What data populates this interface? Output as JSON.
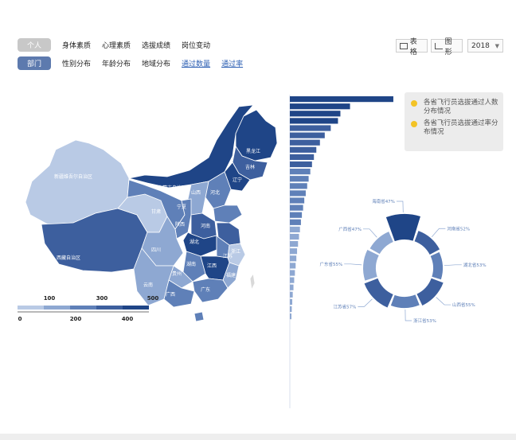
{
  "primary_tabs": {
    "selected": "个人",
    "items": [
      "身体素质",
      "心理素质",
      "选拔成绩",
      "岗位变动"
    ]
  },
  "secondary_tabs": {
    "selected": "部门",
    "items": [
      "性别分布",
      "年龄分布",
      "地域分布"
    ],
    "links": [
      "通过数量",
      "通过率"
    ]
  },
  "view_toggle": {
    "table_label": "表格",
    "chart_label": "图形"
  },
  "year_select": {
    "value": "2018"
  },
  "legend_box": {
    "items": [
      "各省飞行员选拔通过人数分布情况",
      "各省飞行员选拔通过率分布情况"
    ]
  },
  "colors": {
    "dark": "#1f4587",
    "mid_dark": "#3d5f9e",
    "mid": "#5f80b8",
    "light": "#8ea8d2",
    "pale": "#b9cae5",
    "dot": "#f3c326"
  },
  "map": {
    "region_labels": [
      "新疆维吾尔自治区",
      "内蒙古自治区",
      "西藏自治区",
      "黑龙江",
      "吉林",
      "辽宁",
      "甘肃",
      "宁夏",
      "山西",
      "河北",
      "陕西",
      "河南",
      "四川",
      "湖北",
      "江苏",
      "浙江",
      "江西",
      "湖南",
      "贵州",
      "广西",
      "广东",
      "云南",
      "福建"
    ],
    "scale": {
      "upper_ticks": [
        "100",
        "300",
        "500"
      ],
      "lower_ticks": [
        "0",
        "200",
        "400"
      ]
    }
  },
  "chart_data": [
    {
      "type": "bar",
      "orientation": "horizontal",
      "values": [
        430,
        250,
        210,
        200,
        170,
        145,
        125,
        110,
        100,
        92,
        85,
        78,
        72,
        66,
        60,
        55,
        50,
        46,
        42,
        38,
        34,
        30,
        27,
        24,
        21,
        18,
        15,
        12,
        10,
        8,
        6
      ],
      "xlim": [
        0,
        450
      ]
    },
    {
      "type": "pie",
      "style": "nightingale-ring",
      "labels": [
        "海南省47%",
        "河南省52%",
        "湖北省53%",
        "山西省55%",
        "浙江省53%",
        "江苏省57%",
        "广东省55%",
        "广西省47%"
      ],
      "values": [
        47,
        52,
        53,
        55,
        53,
        57,
        55,
        47
      ]
    }
  ]
}
